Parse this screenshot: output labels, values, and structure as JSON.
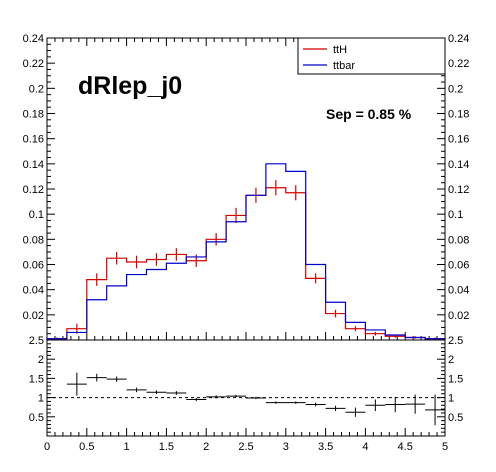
{
  "chart_data": [
    {
      "type": "histogram",
      "title": "dRlep_j0",
      "annotation": "Sep = 0.85 %",
      "xlim": [
        0,
        5
      ],
      "ylim": [
        0,
        0.24
      ],
      "x_ticks": [
        "0.5",
        "1",
        "1.5",
        "2",
        "2.5",
        "3",
        "3.5",
        "4",
        "4.5",
        "5"
      ],
      "y_ticks": [
        "0.02",
        "0.04",
        "0.06",
        "0.08",
        "0.1",
        "0.12",
        "0.14",
        "0.16",
        "0.18",
        "0.2",
        "0.22",
        "0.24"
      ],
      "bin_edges": [
        0,
        0.25,
        0.5,
        0.75,
        1.0,
        1.25,
        1.5,
        1.75,
        2.0,
        2.25,
        2.5,
        2.75,
        3.0,
        3.25,
        3.5,
        3.75,
        4.0,
        4.25,
        4.5,
        4.75,
        5.0
      ],
      "series": [
        {
          "name": "ttH",
          "color": "#d40000",
          "values": [
            0.001,
            0.009,
            0.048,
            0.065,
            0.062,
            0.064,
            0.068,
            0.063,
            0.08,
            0.099,
            0.115,
            0.121,
            0.117,
            0.049,
            0.021,
            0.009,
            0.005,
            0.003,
            0.002,
            0.001
          ],
          "errors": [
            0.001,
            0.004,
            0.005,
            0.005,
            0.005,
            0.005,
            0.005,
            0.005,
            0.005,
            0.006,
            0.006,
            0.006,
            0.006,
            0.004,
            0.003,
            0.002,
            0.0015,
            0.0012,
            0.001,
            0.001
          ]
        },
        {
          "name": "ttbar",
          "color": "#0000cc",
          "values": [
            0.001,
            0.006,
            0.032,
            0.043,
            0.052,
            0.056,
            0.061,
            0.066,
            0.078,
            0.094,
            0.115,
            0.14,
            0.134,
            0.06,
            0.03,
            0.014,
            0.008,
            0.004,
            0.002,
            0.001
          ]
        }
      ],
      "legend_position": "top-right"
    },
    {
      "type": "ratio",
      "xlim": [
        0,
        5
      ],
      "ylim": [
        0,
        2.5
      ],
      "x_ticks": [
        "0",
        "0.5",
        "1",
        "1.5",
        "2",
        "2.5",
        "3",
        "3.5",
        "4",
        "4.5",
        "5"
      ],
      "y_ticks": [
        "0.5",
        "1",
        "1.5",
        "2",
        "2.5"
      ],
      "reference_line": 1.0,
      "points": [
        {
          "x": 0.375,
          "y": 1.35,
          "err": 0.3
        },
        {
          "x": 0.625,
          "y": 1.52,
          "err": 0.1
        },
        {
          "x": 0.875,
          "y": 1.48,
          "err": 0.07
        },
        {
          "x": 1.125,
          "y": 1.2,
          "err": 0.06
        },
        {
          "x": 1.375,
          "y": 1.14,
          "err": 0.05
        },
        {
          "x": 1.625,
          "y": 1.12,
          "err": 0.05
        },
        {
          "x": 1.875,
          "y": 0.95,
          "err": 0.04
        },
        {
          "x": 2.125,
          "y": 1.02,
          "err": 0.04
        },
        {
          "x": 2.375,
          "y": 1.04,
          "err": 0.03
        },
        {
          "x": 2.625,
          "y": 0.99,
          "err": 0.03
        },
        {
          "x": 2.875,
          "y": 0.87,
          "err": 0.03
        },
        {
          "x": 3.125,
          "y": 0.87,
          "err": 0.03
        },
        {
          "x": 3.375,
          "y": 0.82,
          "err": 0.05
        },
        {
          "x": 3.625,
          "y": 0.72,
          "err": 0.07
        },
        {
          "x": 3.875,
          "y": 0.62,
          "err": 0.12
        },
        {
          "x": 4.125,
          "y": 0.8,
          "err": 0.15
        },
        {
          "x": 4.375,
          "y": 0.82,
          "err": 0.2
        },
        {
          "x": 4.625,
          "y": 0.83,
          "err": 0.25
        },
        {
          "x": 4.875,
          "y": 0.68,
          "err": 0.4
        }
      ]
    }
  ]
}
